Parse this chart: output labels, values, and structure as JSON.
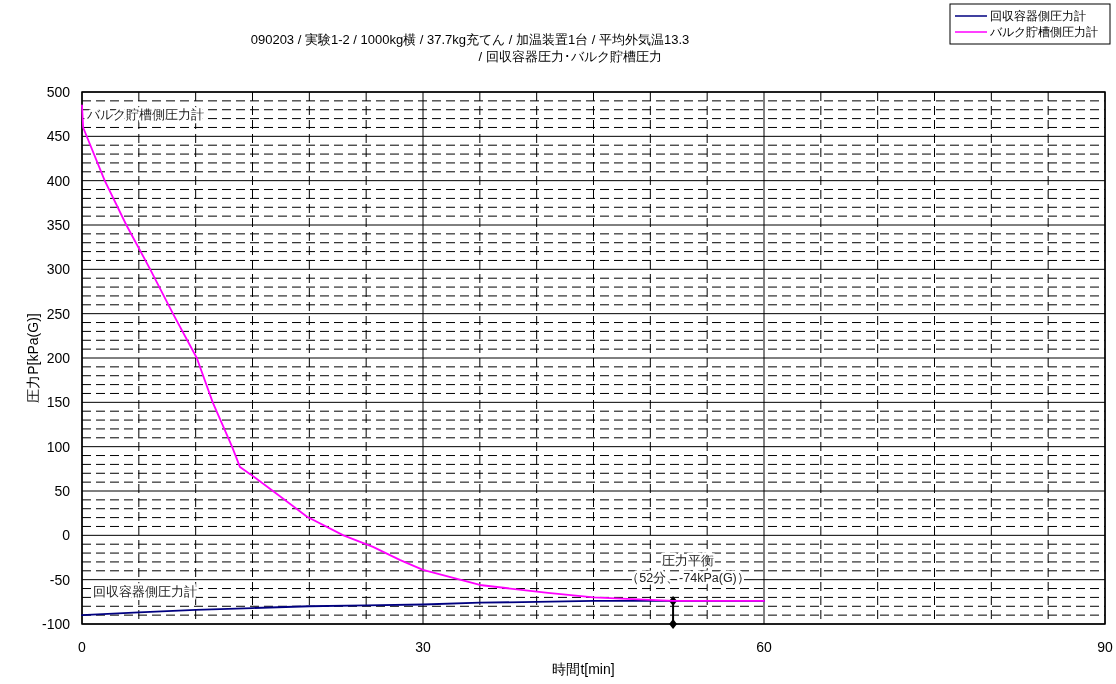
{
  "chart_data": {
    "type": "line",
    "title": "090203 / 実験1-2 / 1000kg横 / 37.7kg充てん / 加温装置1台 / 平均外気温13.3",
    "subtitle": "/ 回収容器圧力･バルク貯槽圧力",
    "xlabel": "時間t[min]",
    "ylabel": "圧力P[kPa(G)]",
    "xlim": [
      0,
      90
    ],
    "xticks": [
      0,
      30,
      60,
      90
    ],
    "ylim": [
      -100,
      500
    ],
    "yticks": [
      -100,
      -50,
      0,
      50,
      100,
      150,
      200,
      250,
      300,
      350,
      400,
      450,
      500
    ],
    "grid": true,
    "legend": "top right",
    "marker": "none",
    "line_style": "solid",
    "series": [
      {
        "name": "回収容器側圧力計",
        "color": "#000080",
        "x": [
          0,
          5,
          10,
          15,
          20,
          25,
          30,
          35,
          40,
          45,
          52,
          60
        ],
        "values": [
          -90,
          -87,
          -84,
          -82,
          -80,
          -79,
          -78,
          -76,
          -75,
          -74,
          -74,
          -74
        ]
      },
      {
        "name": "バルク貯槽側圧力計",
        "color": "#ff00ff",
        "x": [
          0,
          0.1,
          2,
          3.9,
          6,
          8,
          10.1,
          11.5,
          13.2,
          13.9,
          14.8,
          16.8,
          19.8,
          23,
          25.6,
          28,
          30,
          35,
          41,
          45,
          52,
          60
        ],
        "values": [
          485,
          460,
          400,
          350,
          300,
          250,
          200,
          150,
          100,
          77,
          69,
          50,
          21,
          0,
          -13,
          -28,
          -39,
          -56,
          -65,
          -70,
          -74,
          -74
        ]
      },
      {
        "type": "line",
        "color": "#000000",
        "marker": "diamond",
        "x": [
          52,
          52
        ],
        "values": [
          -74,
          -100
        ]
      }
    ],
    "annotations": [
      "圧力平衡",
      "（52分、-74kPa(G)）"
    ]
  }
}
